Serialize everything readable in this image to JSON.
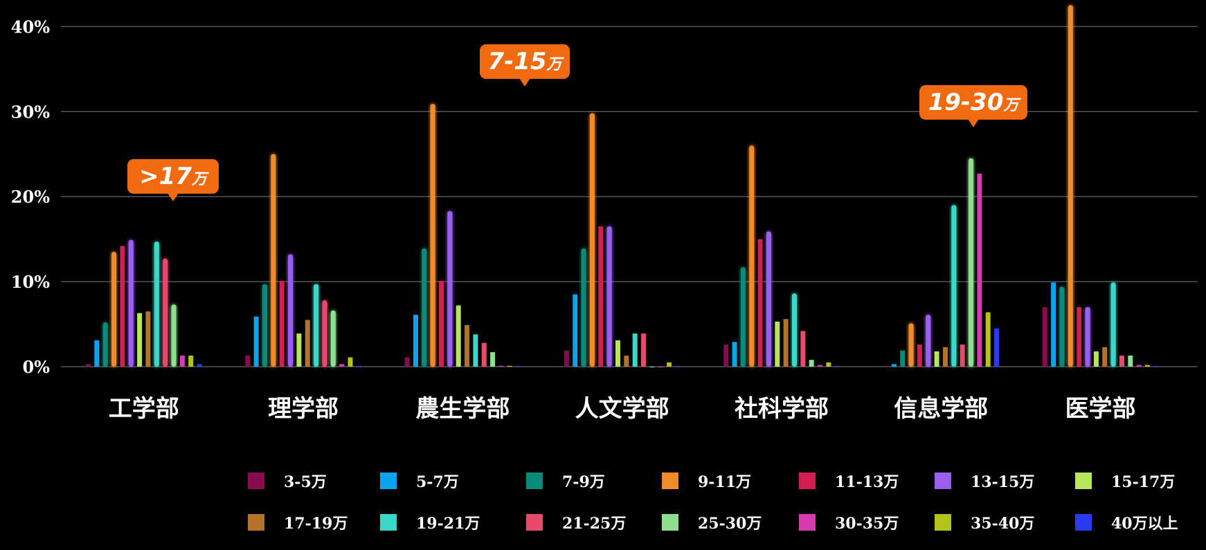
{
  "chart_data": {
    "type": "bar",
    "y_ticks": [
      "0%",
      "10%",
      "20%",
      "30%",
      "40%"
    ],
    "ylim": [
      0,
      40
    ],
    "grid": true,
    "legend_position": "bottom",
    "categories": [
      "工学部",
      "理学部",
      "農生学部",
      "人文学部",
      "社科学部",
      "信息学部",
      "医学部"
    ],
    "series": [
      {
        "name": "3-5万",
        "color": "#8a0a4e",
        "values": [
          0.3,
          1.3,
          1.1,
          1.9,
          2.6,
          0.1,
          7.0
        ]
      },
      {
        "name": "5-7万",
        "color": "#0aa4f0",
        "values": [
          3.1,
          5.9,
          6.1,
          8.5,
          2.9,
          0.3,
          9.9
        ]
      },
      {
        "name": "7-9万",
        "color": "#0a8a7a",
        "values": [
          5.2,
          9.7,
          13.9,
          13.9,
          11.7,
          1.9,
          9.4
        ]
      },
      {
        "name": "9-11万",
        "color": "#f08a2a",
        "values": [
          13.5,
          25.0,
          30.9,
          29.8,
          26.0,
          5.1,
          42.5
        ]
      },
      {
        "name": "11-13万",
        "color": "#d21e50",
        "values": [
          14.2,
          10.1,
          10.1,
          16.5,
          15.0,
          2.6,
          7.0
        ]
      },
      {
        "name": "13-15万",
        "color": "#9b5ff0",
        "values": [
          14.9,
          13.2,
          18.3,
          16.5,
          15.9,
          6.1,
          7.0
        ]
      },
      {
        "name": "15-17万",
        "color": "#b8e65a",
        "values": [
          6.3,
          3.9,
          7.2,
          3.1,
          5.3,
          1.8,
          1.8
        ]
      },
      {
        "name": "17-19万",
        "color": "#b5732a",
        "values": [
          6.5,
          5.5,
          4.9,
          1.3,
          5.6,
          2.3,
          2.3
        ]
      },
      {
        "name": "19-21万",
        "color": "#3ad8c8",
        "values": [
          14.7,
          9.7,
          3.8,
          3.9,
          8.6,
          19.0,
          9.9
        ]
      },
      {
        "name": "21-25万",
        "color": "#e84a6a",
        "values": [
          12.7,
          7.8,
          2.8,
          3.9,
          4.2,
          2.6,
          1.3
        ]
      },
      {
        "name": "25-30万",
        "color": "#8ee08e",
        "values": [
          7.3,
          6.6,
          1.7,
          0.0,
          0.8,
          24.5,
          1.3
        ]
      },
      {
        "name": "30-35万",
        "color": "#d83ab0",
        "values": [
          1.3,
          0.3,
          0.1,
          0.0,
          0.2,
          22.7,
          0.2
        ]
      },
      {
        "name": "35-40万",
        "color": "#b4c21a",
        "values": [
          1.3,
          1.1,
          0.1,
          0.5,
          0.5,
          6.4,
          0.2
        ]
      },
      {
        "name": "40万以上",
        "color": "#2a3af0",
        "values": [
          0.3,
          0.1,
          0.1,
          0.1,
          0.1,
          4.5,
          0.1
        ]
      }
    ],
    "annotations": [
      {
        "text": ">17",
        "unit": "万",
        "category": "工学部"
      },
      {
        "text": "7-15",
        "unit": "万",
        "category": "農生学部"
      },
      {
        "text": "19-30",
        "unit": "万",
        "category": "信息学部"
      }
    ]
  }
}
